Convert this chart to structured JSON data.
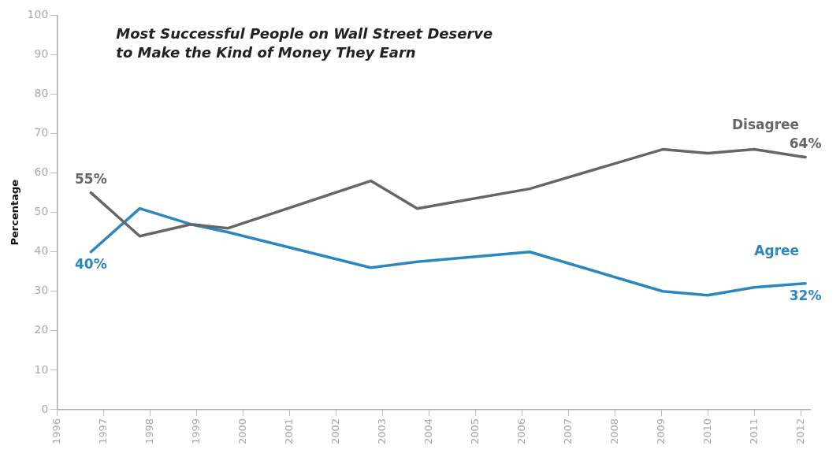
{
  "chart_data": {
    "type": "line",
    "title": "Most Successful People on Wall Street Deserve to Make the Kind of Money They Earn",
    "ylabel": "Percentage",
    "xlim": [
      1996,
      2012.2
    ],
    "xticks": [
      1996,
      1997,
      1998,
      1999,
      2000,
      2001,
      2002,
      2003,
      2004,
      2005,
      2006,
      2007,
      2008,
      2009,
      2010,
      2011,
      2012
    ],
    "ylim": [
      0,
      100
    ],
    "yticks": [
      0,
      10,
      20,
      30,
      40,
      50,
      60,
      70,
      80,
      90,
      100
    ],
    "grid": false,
    "legend": false,
    "marker": "none",
    "line_style": "solid",
    "series": [
      {
        "name": "Disagree",
        "color": "#666666",
        "x": [
          1996.73,
          1997.78,
          1998.88,
          1999.68,
          2002.75,
          2003.75,
          2006.17,
          2009.03,
          2010.0,
          2011.0,
          2012.1
        ],
        "values": [
          55,
          44,
          47,
          46,
          58,
          51,
          56,
          66,
          65,
          66,
          64
        ],
        "value_labels": [
          "55%",
          null,
          null,
          null,
          null,
          null,
          null,
          null,
          null,
          null,
          "64%"
        ]
      },
      {
        "name": "Agree",
        "color": "#2b87c0",
        "x": [
          1996.73,
          1997.78,
          1998.88,
          1999.68,
          2002.75,
          2003.75,
          2006.17,
          2009.03,
          2010.0,
          2011.0,
          2012.1
        ],
        "values": [
          40,
          51,
          47,
          45,
          36,
          37.5,
          40,
          30,
          29,
          31,
          32
        ],
        "value_labels": [
          "40%",
          null,
          null,
          null,
          null,
          null,
          null,
          null,
          null,
          null,
          "32%"
        ]
      }
    ]
  }
}
